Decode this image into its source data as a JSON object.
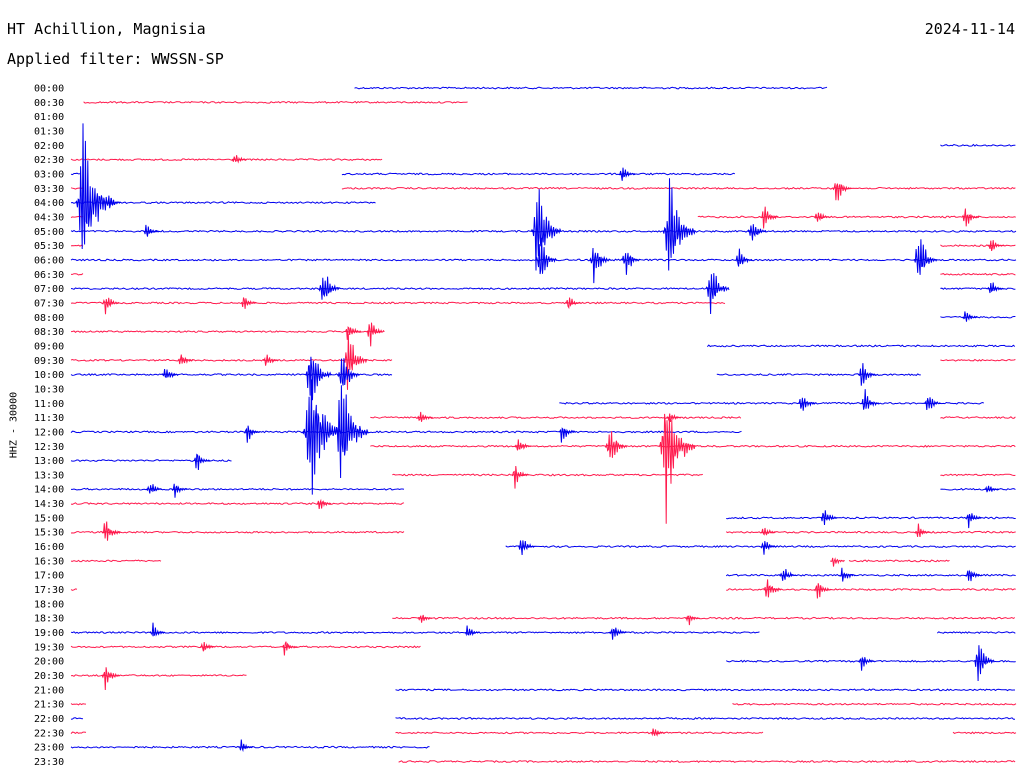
{
  "header": {
    "station": "HT Achillion, Magnisia",
    "filter": "Applied filter: WWSSN-SP",
    "date": "2024-11-14"
  },
  "chart_data": {
    "type": "line",
    "ylabel": "HHZ - 30000",
    "colors": {
      "even_rows": "#0000ee",
      "odd_rows": "#ff1a4d"
    },
    "row_labels": [
      "00:00",
      "00:30",
      "01:00",
      "01:30",
      "02:00",
      "02:30",
      "03:00",
      "03:30",
      "04:00",
      "04:30",
      "05:00",
      "05:30",
      "06:00",
      "06:30",
      "07:00",
      "07:30",
      "08:00",
      "08:30",
      "09:00",
      "09:30",
      "10:00",
      "10:30",
      "11:00",
      "11:30",
      "12:00",
      "12:30",
      "13:00",
      "13:30",
      "14:00",
      "14:30",
      "15:00",
      "15:30",
      "16:00",
      "16:30",
      "17:00",
      "17:30",
      "18:00",
      "18:30",
      "19:00",
      "19:30",
      "20:00",
      "20:30",
      "21:00",
      "21:30",
      "22:00",
      "22:30",
      "23:00",
      "23:30"
    ],
    "minutes_per_row": 30,
    "traces": [
      {
        "row": 0,
        "segments": [
          [
            9.0,
            24.0
          ]
        ]
      },
      {
        "row": 1,
        "segments": [
          [
            0.4,
            12.6
          ]
        ]
      },
      {
        "row": 2,
        "segments": []
      },
      {
        "row": 3,
        "segments": []
      },
      {
        "row": 4,
        "segments": [
          [
            27.6,
            30.0
          ]
        ]
      },
      {
        "row": 5,
        "segments": [
          [
            0.0,
            0.4
          ],
          [
            0.4,
            9.9
          ]
        ]
      },
      {
        "row": 6,
        "segments": [
          [
            0.0,
            0.3
          ],
          [
            8.6,
            21.1
          ]
        ]
      },
      {
        "row": 7,
        "segments": [
          [
            0.0,
            0.4
          ],
          [
            8.6,
            30.0
          ]
        ]
      },
      {
        "row": 8,
        "segments": [
          [
            0.0,
            9.7
          ]
        ]
      },
      {
        "row": 9,
        "segments": [
          [
            0.0,
            0.4
          ],
          [
            19.9,
            30.0
          ]
        ]
      },
      {
        "row": 10,
        "segments": [
          [
            0.0,
            30.0
          ]
        ]
      },
      {
        "row": 11,
        "segments": [
          [
            0.0,
            0.4
          ],
          [
            27.6,
            30.0
          ]
        ]
      },
      {
        "row": 12,
        "segments": [
          [
            0.0,
            30.0
          ]
        ]
      },
      {
        "row": 13,
        "segments": [
          [
            0.0,
            0.4
          ],
          [
            27.6,
            30.0
          ]
        ]
      },
      {
        "row": 14,
        "segments": [
          [
            0.0,
            20.8
          ],
          [
            27.6,
            30.0
          ]
        ]
      },
      {
        "row": 15,
        "segments": [
          [
            0.0,
            20.8
          ]
        ]
      },
      {
        "row": 16,
        "segments": [
          [
            27.6,
            30.0
          ]
        ]
      },
      {
        "row": 17,
        "segments": [
          [
            0.0,
            9.9
          ]
        ]
      },
      {
        "row": 18,
        "segments": [
          [
            20.2,
            30.0
          ]
        ]
      },
      {
        "row": 19,
        "segments": [
          [
            0.0,
            10.2
          ],
          [
            27.6,
            30.0
          ]
        ]
      },
      {
        "row": 20,
        "segments": [
          [
            0.0,
            10.2
          ],
          [
            20.5,
            27.0
          ]
        ]
      },
      {
        "row": 21,
        "segments": []
      },
      {
        "row": 22,
        "segments": [
          [
            15.5,
            29.0
          ]
        ]
      },
      {
        "row": 23,
        "segments": [
          [
            9.5,
            21.3
          ],
          [
            27.6,
            30.0
          ]
        ]
      },
      {
        "row": 24,
        "segments": [
          [
            0.0,
            21.3
          ]
        ]
      },
      {
        "row": 25,
        "segments": [
          [
            9.5,
            30.0
          ]
        ]
      },
      {
        "row": 26,
        "segments": [
          [
            0.0,
            5.1
          ]
        ]
      },
      {
        "row": 27,
        "segments": [
          [
            10.2,
            20.1
          ],
          [
            27.6,
            30.0
          ]
        ]
      },
      {
        "row": 28,
        "segments": [
          [
            0.0,
            10.6
          ],
          [
            27.6,
            30.0
          ]
        ]
      },
      {
        "row": 29,
        "segments": [
          [
            0.0,
            10.6
          ]
        ]
      },
      {
        "row": 30,
        "segments": [
          [
            20.8,
            30.0
          ]
        ]
      },
      {
        "row": 31,
        "segments": [
          [
            0.0,
            10.6
          ],
          [
            20.8,
            30.0
          ]
        ]
      },
      {
        "row": 32,
        "segments": [
          [
            13.8,
            30.0
          ]
        ]
      },
      {
        "row": 33,
        "segments": [
          [
            0.0,
            2.9
          ],
          [
            24.7,
            27.9
          ]
        ]
      },
      {
        "row": 34,
        "segments": [
          [
            20.8,
            30.0
          ]
        ]
      },
      {
        "row": 35,
        "segments": [
          [
            0.0,
            0.2
          ],
          [
            20.8,
            30.0
          ]
        ]
      },
      {
        "row": 36,
        "segments": []
      },
      {
        "row": 37,
        "segments": [
          [
            10.2,
            30.0
          ]
        ]
      },
      {
        "row": 38,
        "segments": [
          [
            0.0,
            21.9
          ],
          [
            27.5,
            30.0
          ]
        ]
      },
      {
        "row": 39,
        "segments": [
          [
            0.0,
            11.1
          ]
        ]
      },
      {
        "row": 40,
        "segments": [
          [
            20.8,
            30.0
          ]
        ]
      },
      {
        "row": 41,
        "segments": [
          [
            0.0,
            5.6
          ]
        ]
      },
      {
        "row": 42,
        "segments": [
          [
            10.3,
            30.0
          ]
        ]
      },
      {
        "row": 43,
        "segments": [
          [
            0.0,
            0.5
          ],
          [
            21.0,
            30.0
          ]
        ]
      },
      {
        "row": 44,
        "segments": [
          [
            0.0,
            0.4
          ],
          [
            10.3,
            30.0
          ]
        ]
      },
      {
        "row": 45,
        "segments": [
          [
            0.0,
            0.5
          ],
          [
            10.3,
            22.0
          ],
          [
            28.0,
            30.0
          ]
        ]
      },
      {
        "row": 46,
        "segments": [
          [
            0.0,
            11.4
          ]
        ]
      },
      {
        "row": 47,
        "segments": [
          [
            10.4,
            30.0
          ]
        ]
      }
    ],
    "bursts": [
      {
        "row": 5,
        "t": 5.2,
        "amp": 6
      },
      {
        "row": 6,
        "t": 17.5,
        "amp": 8
      },
      {
        "row": 7,
        "t": 24.3,
        "amp": 14
      },
      {
        "row": 8,
        "t": 0.4,
        "amp": 60
      },
      {
        "row": 8,
        "t": 1.2,
        "amp": 7
      },
      {
        "row": 9,
        "t": 22.0,
        "amp": 12
      },
      {
        "row": 9,
        "t": 23.7,
        "amp": 7
      },
      {
        "row": 9,
        "t": 28.4,
        "amp": 10
      },
      {
        "row": 10,
        "t": 2.4,
        "amp": 7
      },
      {
        "row": 10,
        "t": 14.8,
        "amp": 40
      },
      {
        "row": 10,
        "t": 19.0,
        "amp": 45
      },
      {
        "row": 10,
        "t": 21.6,
        "amp": 14
      },
      {
        "row": 11,
        "t": 29.2,
        "amp": 8
      },
      {
        "row": 12,
        "t": 14.9,
        "amp": 20
      },
      {
        "row": 12,
        "t": 16.6,
        "amp": 18
      },
      {
        "row": 12,
        "t": 17.6,
        "amp": 15
      },
      {
        "row": 12,
        "t": 21.2,
        "amp": 10
      },
      {
        "row": 12,
        "t": 26.9,
        "amp": 25
      },
      {
        "row": 14,
        "t": 8.0,
        "amp": 20
      },
      {
        "row": 14,
        "t": 20.3,
        "amp": 25
      },
      {
        "row": 14,
        "t": 29.2,
        "amp": 8
      },
      {
        "row": 15,
        "t": 1.1,
        "amp": 10
      },
      {
        "row": 15,
        "t": 5.5,
        "amp": 8
      },
      {
        "row": 15,
        "t": 15.8,
        "amp": 7
      },
      {
        "row": 16,
        "t": 28.4,
        "amp": 7
      },
      {
        "row": 17,
        "t": 9.5,
        "amp": 12
      },
      {
        "row": 17,
        "t": 8.8,
        "amp": 9
      },
      {
        "row": 19,
        "t": 8.8,
        "amp": 25
      },
      {
        "row": 19,
        "t": 3.5,
        "amp": 8
      },
      {
        "row": 19,
        "t": 6.2,
        "amp": 7
      },
      {
        "row": 20,
        "t": 3.0,
        "amp": 9
      },
      {
        "row": 20,
        "t": 7.6,
        "amp": 30
      },
      {
        "row": 20,
        "t": 8.6,
        "amp": 22
      },
      {
        "row": 20,
        "t": 25.1,
        "amp": 12
      },
      {
        "row": 22,
        "t": 23.2,
        "amp": 10
      },
      {
        "row": 22,
        "t": 25.2,
        "amp": 12
      },
      {
        "row": 22,
        "t": 27.2,
        "amp": 10
      },
      {
        "row": 23,
        "t": 11.1,
        "amp": 7
      },
      {
        "row": 23,
        "t": 19.0,
        "amp": 6
      },
      {
        "row": 24,
        "t": 7.6,
        "amp": 60
      },
      {
        "row": 24,
        "t": 8.6,
        "amp": 50
      },
      {
        "row": 24,
        "t": 5.6,
        "amp": 9
      },
      {
        "row": 24,
        "t": 15.6,
        "amp": 10
      },
      {
        "row": 25,
        "t": 17.1,
        "amp": 22
      },
      {
        "row": 25,
        "t": 18.9,
        "amp": 55
      },
      {
        "row": 25,
        "t": 14.2,
        "amp": 8
      },
      {
        "row": 26,
        "t": 4.0,
        "amp": 10
      },
      {
        "row": 27,
        "t": 14.1,
        "amp": 10
      },
      {
        "row": 28,
        "t": 2.5,
        "amp": 8
      },
      {
        "row": 28,
        "t": 3.3,
        "amp": 7
      },
      {
        "row": 28,
        "t": 29.1,
        "amp": 6
      },
      {
        "row": 29,
        "t": 7.9,
        "amp": 6
      },
      {
        "row": 30,
        "t": 23.9,
        "amp": 10
      },
      {
        "row": 30,
        "t": 28.5,
        "amp": 8
      },
      {
        "row": 31,
        "t": 1.1,
        "amp": 14
      },
      {
        "row": 31,
        "t": 22.0,
        "amp": 6
      },
      {
        "row": 31,
        "t": 26.9,
        "amp": 7
      },
      {
        "row": 32,
        "t": 14.3,
        "amp": 10
      },
      {
        "row": 32,
        "t": 22.0,
        "amp": 8
      },
      {
        "row": 33,
        "t": 24.2,
        "amp": 6
      },
      {
        "row": 34,
        "t": 22.6,
        "amp": 10
      },
      {
        "row": 34,
        "t": 24.5,
        "amp": 8
      },
      {
        "row": 34,
        "t": 28.5,
        "amp": 10
      },
      {
        "row": 35,
        "t": 22.1,
        "amp": 12
      },
      {
        "row": 35,
        "t": 23.7,
        "amp": 10
      },
      {
        "row": 37,
        "t": 11.1,
        "amp": 6
      },
      {
        "row": 37,
        "t": 19.6,
        "amp": 6
      },
      {
        "row": 38,
        "t": 2.6,
        "amp": 7
      },
      {
        "row": 38,
        "t": 12.6,
        "amp": 8
      },
      {
        "row": 38,
        "t": 17.2,
        "amp": 10
      },
      {
        "row": 39,
        "t": 4.2,
        "amp": 7
      },
      {
        "row": 39,
        "t": 6.8,
        "amp": 8
      },
      {
        "row": 40,
        "t": 28.8,
        "amp": 18
      },
      {
        "row": 40,
        "t": 25.1,
        "amp": 8
      },
      {
        "row": 41,
        "t": 1.1,
        "amp": 12
      },
      {
        "row": 45,
        "t": 18.5,
        "amp": 6
      },
      {
        "row": 46,
        "t": 5.4,
        "amp": 6
      }
    ]
  }
}
